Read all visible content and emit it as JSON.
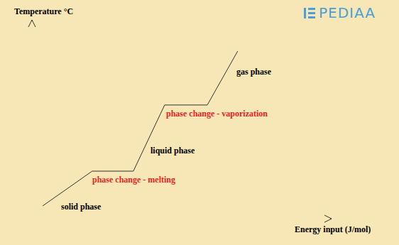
{
  "chart_data": {
    "type": "line",
    "x_label": "Energy input (J/mol)",
    "y_label": "Temperature °C",
    "watermark": "PEDIAA",
    "x": [
      3.6,
      20.2,
      34.0,
      44.5,
      58.8,
      69.0
    ],
    "values": [
      6.5,
      24.1,
      24.1,
      57.6,
      57.6,
      84.9
    ],
    "color": "#333333",
    "xlim": [
      0,
      100
    ],
    "ylim": [
      0,
      100
    ],
    "xticks": [],
    "yticks": [],
    "tick_labels": false,
    "grid": false,
    "annotations": [
      {
        "text": "solid phase",
        "color": "#000000"
      },
      {
        "text": "phase change - melting",
        "color": "#e8231e"
      },
      {
        "text": "liquid phase",
        "color": "#000000"
      },
      {
        "text": "phase change - vaporization",
        "color": "#e8231e"
      },
      {
        "text": "gas phase",
        "color": "#000000"
      }
    ]
  }
}
